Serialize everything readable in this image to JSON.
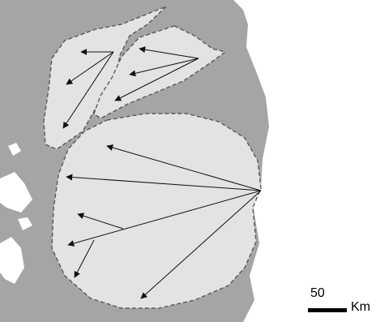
{
  "map": {
    "colors": {
      "background": "#ffffff",
      "land": "#a5a5a5",
      "zone_fill": "#e3e3e3",
      "zone_outline": "#595959",
      "arrow": "#111111"
    }
  },
  "scale_bar": {
    "value": "50",
    "unit": "Km"
  }
}
